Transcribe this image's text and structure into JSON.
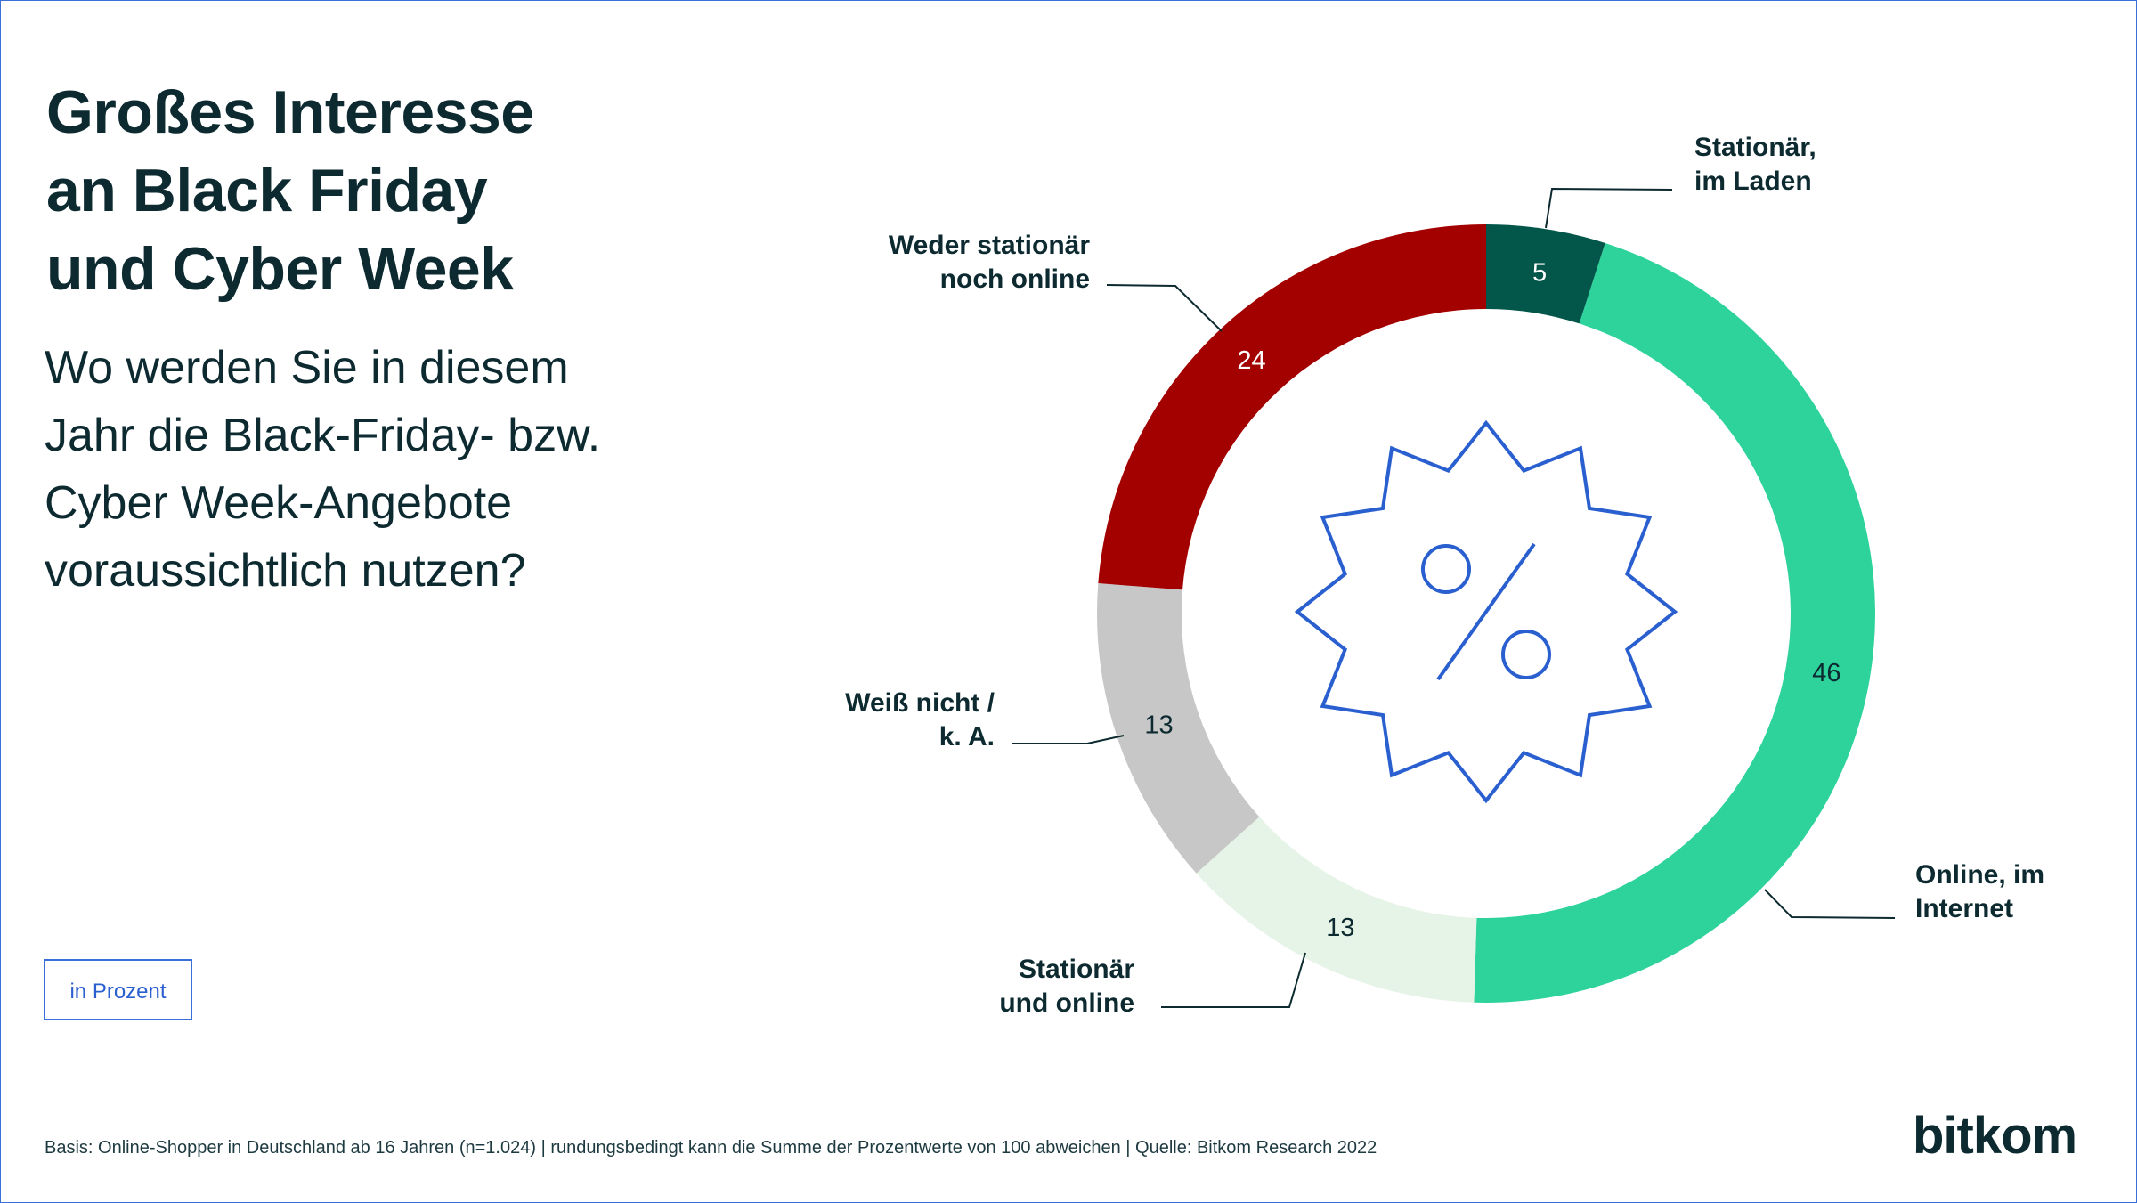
{
  "title_lines": [
    "Großes Interesse",
    "an Black Friday",
    "und Cyber Week"
  ],
  "question_lines": [
    "Wo werden Sie in diesem",
    "Jahr die Black-Friday- bzw.",
    "Cyber Week-Angebote",
    "voraussichtlich nutzen?"
  ],
  "unit_label": "in Prozent",
  "footnote": "Basis: Online-Shopper in Deutschland ab 16 Jahren (n=1.024) | rundungsbedingt kann die Summe der Prozentwerte von 100 abweichen | Quelle: Bitkom Research 2022",
  "logo": "bitkom",
  "center_icon": "percent-badge-icon",
  "colors": {
    "text": "#0c2a30",
    "accent_blue": "#2a5fd0"
  },
  "chart_data": {
    "type": "pie",
    "variant": "donut",
    "unit": "in Prozent",
    "start": "top, clockwise",
    "slices": [
      {
        "label_lines": [
          "Stationär,",
          "im Laden"
        ],
        "value": 5,
        "color": "#03564a",
        "value_color": "#ffffff"
      },
      {
        "label_lines": [
          "Online, im",
          "Internet"
        ],
        "value": 46,
        "color": "#2dd39b",
        "value_color": "#0c2a30"
      },
      {
        "label_lines": [
          "Stationär",
          "und online"
        ],
        "value": 13,
        "color": "#e6f4e7",
        "value_color": "#0c2a30"
      },
      {
        "label_lines": [
          "Weiß nicht /",
          "k. A."
        ],
        "value": 13,
        "color": "#c7c7c7",
        "value_color": "#0c2a30"
      },
      {
        "label_lines": [
          "Weder stationär",
          "noch online"
        ],
        "value": 24,
        "color": "#a30000",
        "value_color": "#ffffff"
      }
    ]
  }
}
